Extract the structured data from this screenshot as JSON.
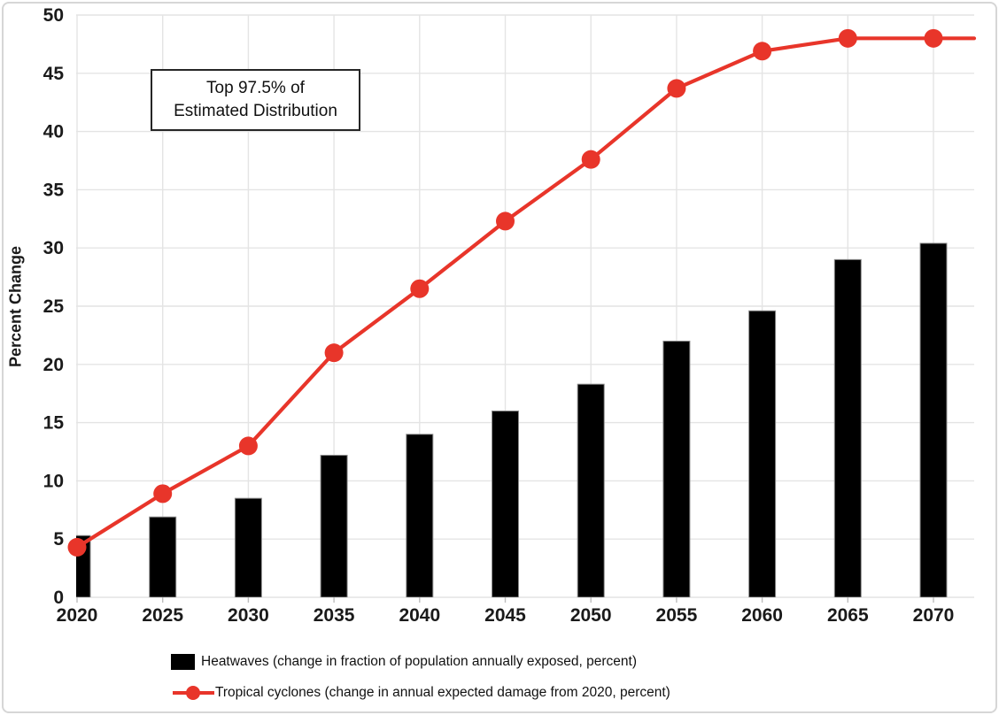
{
  "chart_data": {
    "type": "bar",
    "combo": "bar+line",
    "title": "",
    "xlabel": "",
    "ylabel": "Percent Change",
    "categories": [
      "2020",
      "2025",
      "2030",
      "2035",
      "2040",
      "2045",
      "2050",
      "2055",
      "2060",
      "2065",
      "2070"
    ],
    "series": [
      {
        "name": "Heatwaves (change in fraction of population annually exposed, percent)",
        "type": "bar",
        "color": "#000000",
        "values": [
          5.3,
          6.9,
          8.5,
          12.2,
          14,
          16,
          18.3,
          22,
          24.6,
          29,
          30.4
        ]
      },
      {
        "name": "Tropical cyclones (change in annual expected damage from 2020, percent)",
        "type": "line",
        "color": "#e8352a",
        "values": [
          4.3,
          8.9,
          13,
          21,
          26.5,
          32.3,
          37.6,
          43.7,
          46.9,
          48,
          48
        ]
      }
    ],
    "ylim": [
      0,
      50
    ],
    "yticks": [
      0,
      5,
      10,
      15,
      20,
      25,
      30,
      35,
      40,
      45,
      50
    ],
    "grid": true,
    "legend_position": "bottom",
    "annotation": {
      "line1": "Top 97.5% of",
      "line2": "Estimated Distribution"
    },
    "colors": {
      "bar": "#000000",
      "bar_outline": "#8c8c8c",
      "line": "#e8352a",
      "gridline": "#e4e4e4",
      "tick": "#bdbdbd",
      "text": "#1a1a1a"
    }
  }
}
